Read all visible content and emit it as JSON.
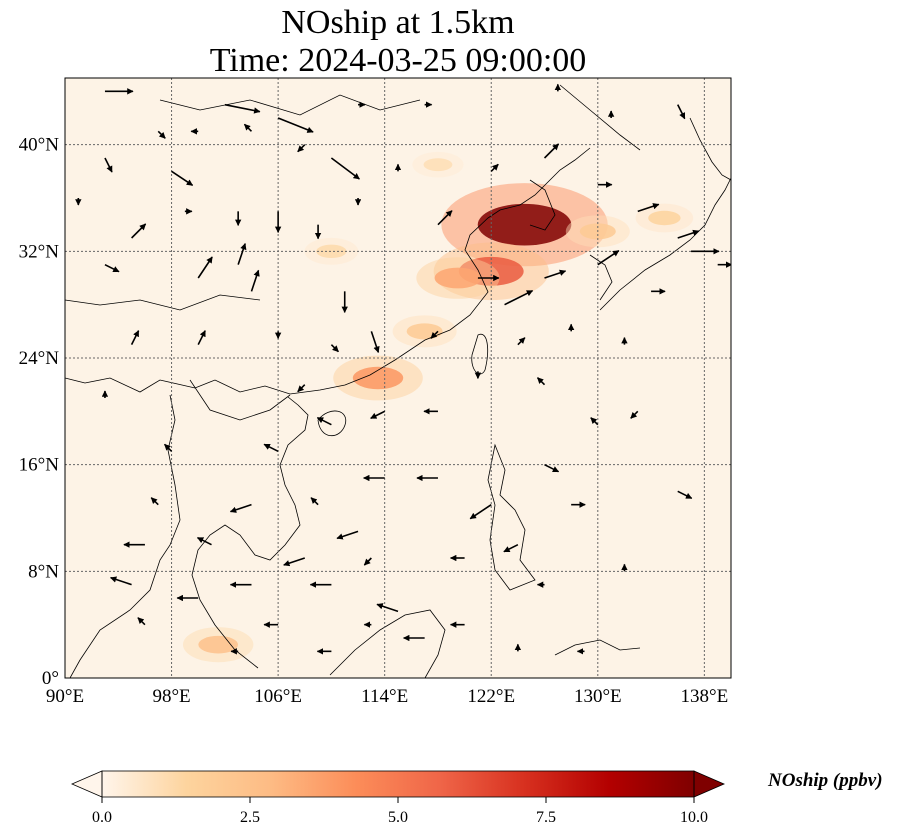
{
  "title": {
    "line1": "NOship at 1.5km",
    "line2": "Time: 2024-03-25 09:00:00"
  },
  "map": {
    "extent": {
      "lon_min": 90,
      "lon_max": 140,
      "lat_min": 0,
      "lat_max": 45
    },
    "gridlines": true,
    "lon_ticks": [
      {
        "value": 90,
        "label": "90°E"
      },
      {
        "value": 98,
        "label": "98°E"
      },
      {
        "value": 106,
        "label": "106°E"
      },
      {
        "value": 114,
        "label": "114°E"
      },
      {
        "value": 122,
        "label": "122°E"
      },
      {
        "value": 130,
        "label": "130°E"
      },
      {
        "value": 138,
        "label": "138°E"
      }
    ],
    "lat_ticks": [
      {
        "value": 0,
        "label": "0°"
      },
      {
        "value": 8,
        "label": "8°N"
      },
      {
        "value": 16,
        "label": "16°N"
      },
      {
        "value": 24,
        "label": "24°N"
      },
      {
        "value": 32,
        "label": "32°N"
      },
      {
        "value": 40,
        "label": "40°N"
      }
    ],
    "field_hotspots": [
      {
        "lon": 124.5,
        "lat": 34.0,
        "value": 10.0
      },
      {
        "lon": 122.0,
        "lat": 30.5,
        "value": 6.0
      },
      {
        "lon": 119.5,
        "lat": 30.0,
        "value": 3.5
      },
      {
        "lon": 113.5,
        "lat": 22.5,
        "value": 4.0
      },
      {
        "lon": 117.0,
        "lat": 26.0,
        "value": 2.0
      },
      {
        "lon": 110.0,
        "lat": 32.0,
        "value": 1.2
      },
      {
        "lon": 130.0,
        "lat": 33.5,
        "value": 2.0
      },
      {
        "lon": 135.0,
        "lat": 34.5,
        "value": 1.5
      },
      {
        "lon": 101.5,
        "lat": 2.5,
        "value": 2.5
      },
      {
        "lon": 118.0,
        "lat": 38.5,
        "value": 1.0
      }
    ],
    "wind_arrows": [
      {
        "lon": 93,
        "lat": 44,
        "u": 4,
        "v": 0
      },
      {
        "lon": 102,
        "lat": 43,
        "u": 5,
        "v": -1
      },
      {
        "lon": 106,
        "lat": 42,
        "u": 5,
        "v": -2
      },
      {
        "lon": 110,
        "lat": 39,
        "u": 4,
        "v": -3
      },
      {
        "lon": 98,
        "lat": 38,
        "u": 3,
        "v": -2
      },
      {
        "lon": 95,
        "lat": 33,
        "u": 2,
        "v": 2
      },
      {
        "lon": 93,
        "lat": 31,
        "u": 2,
        "v": -1
      },
      {
        "lon": 100,
        "lat": 30,
        "u": 2,
        "v": 3
      },
      {
        "lon": 103,
        "lat": 31,
        "u": 1,
        "v": 3
      },
      {
        "lon": 104,
        "lat": 29,
        "u": 1,
        "v": 3
      },
      {
        "lon": 106,
        "lat": 35,
        "u": 0,
        "v": -3
      },
      {
        "lon": 111,
        "lat": 29,
        "u": 0,
        "v": -3
      },
      {
        "lon": 113,
        "lat": 26,
        "u": 1,
        "v": -3
      },
      {
        "lon": 118,
        "lat": 34,
        "u": 2,
        "v": 2
      },
      {
        "lon": 121,
        "lat": 30,
        "u": 3,
        "v": 0
      },
      {
        "lon": 123,
        "lat": 28,
        "u": 4,
        "v": 2
      },
      {
        "lon": 126,
        "lat": 30,
        "u": 3,
        "v": 1
      },
      {
        "lon": 130,
        "lat": 31,
        "u": 3,
        "v": 2
      },
      {
        "lon": 133,
        "lat": 35,
        "u": 3,
        "v": 1
      },
      {
        "lon": 136,
        "lat": 33,
        "u": 3,
        "v": 1
      },
      {
        "lon": 137,
        "lat": 32,
        "u": 4,
        "v": 0
      },
      {
        "lon": 139,
        "lat": 31,
        "u": 2,
        "v": 0
      },
      {
        "lon": 130,
        "lat": 37,
        "u": 2,
        "v": 0
      },
      {
        "lon": 126,
        "lat": 39,
        "u": 2,
        "v": 2
      },
      {
        "lon": 134,
        "lat": 29,
        "u": 2,
        "v": 0
      },
      {
        "lon": 136,
        "lat": 14,
        "u": 2,
        "v": -1
      },
      {
        "lon": 130,
        "lat": 19,
        "u": -1,
        "v": 1
      },
      {
        "lon": 126,
        "lat": 16,
        "u": 2,
        "v": -1
      },
      {
        "lon": 128,
        "lat": 13,
        "u": 2,
        "v": 0
      },
      {
        "lon": 122,
        "lat": 13,
        "u": -3,
        "v": -2
      },
      {
        "lon": 118,
        "lat": 15,
        "u": -3,
        "v": 0
      },
      {
        "lon": 114,
        "lat": 15,
        "u": -3,
        "v": 0
      },
      {
        "lon": 112,
        "lat": 11,
        "u": -3,
        "v": -1
      },
      {
        "lon": 108,
        "lat": 9,
        "u": -3,
        "v": -1
      },
      {
        "lon": 110,
        "lat": 7,
        "u": -3,
        "v": 0
      },
      {
        "lon": 104,
        "lat": 7,
        "u": -3,
        "v": 0
      },
      {
        "lon": 100,
        "lat": 6,
        "u": -3,
        "v": 0
      },
      {
        "lon": 96,
        "lat": 10,
        "u": -3,
        "v": 0
      },
      {
        "lon": 95,
        "lat": 7,
        "u": -3,
        "v": 1
      },
      {
        "lon": 115,
        "lat": 5,
        "u": -3,
        "v": 1
      },
      {
        "lon": 117,
        "lat": 3,
        "u": -3,
        "v": 0
      },
      {
        "lon": 110,
        "lat": 2,
        "u": -2,
        "v": 0
      },
      {
        "lon": 120,
        "lat": 9,
        "u": -2,
        "v": 0
      },
      {
        "lon": 124,
        "lat": 10,
        "u": -2,
        "v": -1
      },
      {
        "lon": 114,
        "lat": 20,
        "u": -2,
        "v": -1
      },
      {
        "lon": 118,
        "lat": 20,
        "u": -2,
        "v": 0
      },
      {
        "lon": 110,
        "lat": 19,
        "u": -2,
        "v": 1
      },
      {
        "lon": 106,
        "lat": 17,
        "u": -2,
        "v": 1
      },
      {
        "lon": 104,
        "lat": 13,
        "u": -3,
        "v": -1
      },
      {
        "lon": 98,
        "lat": 17,
        "u": -1,
        "v": 1
      },
      {
        "lon": 93,
        "lat": 21,
        "u": 0,
        "v": 1
      },
      {
        "lon": 95,
        "lat": 25,
        "u": 1,
        "v": 2
      },
      {
        "lon": 100,
        "lat": 25,
        "u": 1,
        "v": 2
      },
      {
        "lon": 108,
        "lat": 22,
        "u": -1,
        "v": -1
      },
      {
        "lon": 126,
        "lat": 22,
        "u": -1,
        "v": 1
      },
      {
        "lon": 133,
        "lat": 20,
        "u": -1,
        "v": -1
      },
      {
        "lon": 128,
        "lat": 26,
        "u": 0,
        "v": 1
      },
      {
        "lon": 132,
        "lat": 25,
        "u": 0,
        "v": 1
      },
      {
        "lon": 115,
        "lat": 38,
        "u": 0,
        "v": 1
      },
      {
        "lon": 112,
        "lat": 36,
        "u": 0,
        "v": -1
      },
      {
        "lon": 122,
        "lat": 38,
        "u": 1,
        "v": 1
      },
      {
        "lon": 131,
        "lat": 42,
        "u": 0,
        "v": 1
      },
      {
        "lon": 136,
        "lat": 43,
        "u": 1,
        "v": -2
      },
      {
        "lon": 127,
        "lat": 44,
        "u": 0,
        "v": 1
      },
      {
        "lon": 117,
        "lat": 43,
        "u": 1,
        "v": 0
      },
      {
        "lon": 112,
        "lat": 43,
        "u": 1,
        "v": 0
      },
      {
        "lon": 108,
        "lat": 40,
        "u": -1,
        "v": -1
      },
      {
        "lon": 104,
        "lat": 41,
        "u": -1,
        "v": 1
      },
      {
        "lon": 100,
        "lat": 41,
        "u": -1,
        "v": 0
      },
      {
        "lon": 97,
        "lat": 41,
        "u": 1,
        "v": -1
      },
      {
        "lon": 93,
        "lat": 39,
        "u": 1,
        "v": -2
      },
      {
        "lon": 91,
        "lat": 36,
        "u": 0,
        "v": -1
      },
      {
        "lon": 99,
        "lat": 35,
        "u": 1,
        "v": 0
      },
      {
        "lon": 103,
        "lat": 35,
        "u": 0,
        "v": -2
      },
      {
        "lon": 109,
        "lat": 34,
        "u": 0,
        "v": -2
      },
      {
        "lon": 106,
        "lat": 26,
        "u": 0,
        "v": -1
      },
      {
        "lon": 110,
        "lat": 25,
        "u": 1,
        "v": -1
      },
      {
        "lon": 118,
        "lat": 26,
        "u": -1,
        "v": -1
      },
      {
        "lon": 121,
        "lat": 23,
        "u": 0,
        "v": -1
      },
      {
        "lon": 124,
        "lat": 25,
        "u": 1,
        "v": 1
      },
      {
        "lon": 97,
        "lat": 13,
        "u": -1,
        "v": 1
      },
      {
        "lon": 101,
        "lat": 10,
        "u": -2,
        "v": 1
      },
      {
        "lon": 109,
        "lat": 13,
        "u": -1,
        "v": 1
      },
      {
        "lon": 113,
        "lat": 9,
        "u": -1,
        "v": -1
      },
      {
        "lon": 103,
        "lat": 2,
        "u": -1,
        "v": 0
      },
      {
        "lon": 96,
        "lat": 4,
        "u": -1,
        "v": 1
      },
      {
        "lon": 106,
        "lat": 4,
        "u": -2,
        "v": 0
      },
      {
        "lon": 113,
        "lat": 4,
        "u": -1,
        "v": 0
      },
      {
        "lon": 120,
        "lat": 4,
        "u": -2,
        "v": 0
      },
      {
        "lon": 126,
        "lat": 7,
        "u": -1,
        "v": 0
      },
      {
        "lon": 132,
        "lat": 8,
        "u": 0,
        "v": 1
      },
      {
        "lon": 129,
        "lat": 2,
        "u": -1,
        "v": 0
      },
      {
        "lon": 124,
        "lat": 2,
        "u": 0,
        "v": 1
      }
    ]
  },
  "colorbar": {
    "label": "NOship (ppbv)",
    "min": 0.0,
    "max": 10.0,
    "extend": "both",
    "ticks": [
      {
        "value": 0.0,
        "label": "0.0"
      },
      {
        "value": 2.5,
        "label": "2.5"
      },
      {
        "value": 5.0,
        "label": "5.0"
      },
      {
        "value": 7.5,
        "label": "7.5"
      },
      {
        "value": 10.0,
        "label": "10.0"
      }
    ],
    "colors": [
      "#fff5eb",
      "#fdd49e",
      "#fdbb84",
      "#fc8d59",
      "#ef6548",
      "#d7301f",
      "#b30000",
      "#7f0000"
    ]
  }
}
